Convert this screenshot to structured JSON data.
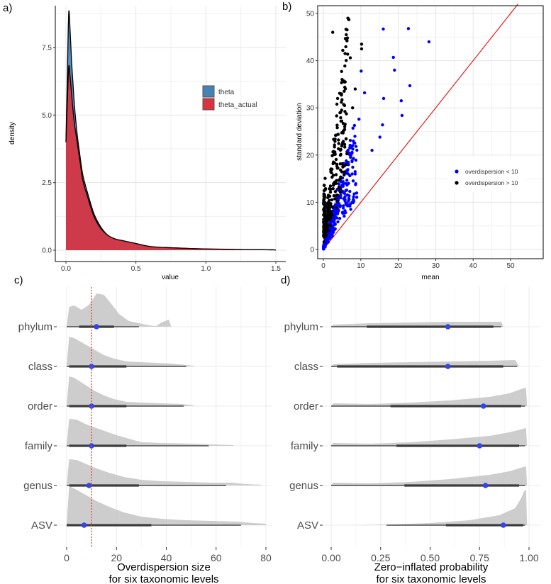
{
  "chart_data": [
    {
      "panel_label": "a)",
      "type": "area",
      "xlabel": "value",
      "ylabel": "density",
      "xlim": [
        0,
        1.5
      ],
      "ylim": [
        0,
        9
      ],
      "x_ticks": [
        "0.0",
        "0.5",
        "1.0",
        "1.5"
      ],
      "y_ticks": [
        "0.0",
        "2.5",
        "5.0",
        "7.5"
      ],
      "grid": true,
      "legend_position": "right",
      "x": [
        0.0,
        0.01,
        0.02,
        0.03,
        0.04,
        0.05,
        0.06,
        0.08,
        0.1,
        0.12,
        0.15,
        0.2,
        0.25,
        0.3,
        0.35,
        0.4,
        0.5,
        0.6,
        0.7,
        0.8,
        0.9,
        1.0,
        1.1,
        1.2,
        1.3,
        1.4,
        1.5
      ],
      "series": [
        {
          "name": "theta",
          "color": "#4682b4",
          "values": [
            4.0,
            6.5,
            8.8,
            8.1,
            7.0,
            6.2,
            5.4,
            4.3,
            3.5,
            2.8,
            2.2,
            1.35,
            0.85,
            0.55,
            0.4,
            0.35,
            0.22,
            0.12,
            0.1,
            0.08,
            0.06,
            0.04,
            0.03,
            0.03,
            0.02,
            0.02,
            0.01
          ]
        },
        {
          "name": "theta_actual",
          "color": "#d9333f",
          "values": [
            4.0,
            5.5,
            6.8,
            6.4,
            5.8,
            5.2,
            4.7,
            4.0,
            3.3,
            2.6,
            2.05,
            1.25,
            0.8,
            0.55,
            0.42,
            0.36,
            0.25,
            0.14,
            0.1,
            0.08,
            0.06,
            0.05,
            0.04,
            0.03,
            0.02,
            0.02,
            0.01
          ]
        }
      ]
    },
    {
      "panel_label": "b)",
      "type": "scatter",
      "xlabel": "mean",
      "ylabel": "standard deviation",
      "xlim": [
        0,
        52
      ],
      "ylim": [
        0,
        52
      ],
      "x_ticks": [
        "0",
        "10",
        "20",
        "30",
        "40",
        "50"
      ],
      "y_ticks": [
        "0",
        "10",
        "20",
        "30",
        "40",
        "50"
      ],
      "grid": true,
      "legend_position": "right",
      "reference_line": "y = x",
      "series": [
        {
          "name": "overdispersion < 10",
          "color": "#0000ff"
        },
        {
          "name": "overdispersion > 10",
          "color": "#000000"
        }
      ]
    },
    {
      "panel_label": "c)",
      "type": "violin",
      "xlabel": "Overdispersion size\nfor six taxonomic levels",
      "xlim": [
        0,
        82
      ],
      "x_ticks": [
        "0",
        "20",
        "40",
        "60",
        "80"
      ],
      "reference_x": 10,
      "categories": [
        "phylum",
        "class",
        "order",
        "family",
        "genus",
        "ASV"
      ],
      "median": [
        12,
        10,
        10,
        10,
        9,
        7
      ],
      "interval_66": [
        [
          5,
          19
        ],
        [
          1,
          24
        ],
        [
          1,
          24
        ],
        [
          1,
          24
        ],
        [
          1,
          29
        ],
        [
          0,
          34
        ]
      ],
      "interval_95": [
        [
          0,
          29
        ],
        [
          0,
          48
        ],
        [
          0,
          47
        ],
        [
          0,
          57
        ],
        [
          0,
          64
        ],
        [
          0,
          70
        ]
      ],
      "range_max": [
        42,
        51,
        51,
        67,
        78,
        80
      ]
    },
    {
      "panel_label": "d)",
      "type": "violin",
      "xlabel": "Zero−inflated probability\nfor six taxonomic levels",
      "xlim": [
        -0.02,
        1.0
      ],
      "x_ticks": [
        "0.00",
        "0.25",
        "0.50",
        "0.75",
        "1.00"
      ],
      "categories": [
        "phylum",
        "class",
        "order",
        "family",
        "genus",
        "ASV"
      ],
      "median": [
        0.59,
        0.59,
        0.77,
        0.75,
        0.78,
        0.87
      ],
      "interval_66": [
        [
          0.18,
          0.82
        ],
        [
          0.03,
          0.87
        ],
        [
          0.3,
          0.96
        ],
        [
          0.33,
          0.95
        ],
        [
          0.37,
          0.95
        ],
        [
          0.58,
          0.97
        ]
      ],
      "interval_95": [
        [
          0.0,
          0.86
        ],
        [
          0.0,
          0.94
        ],
        [
          0.0,
          0.98
        ],
        [
          0.0,
          0.98
        ],
        [
          0.0,
          0.98
        ],
        [
          0.28,
          0.98
        ]
      ]
    }
  ]
}
